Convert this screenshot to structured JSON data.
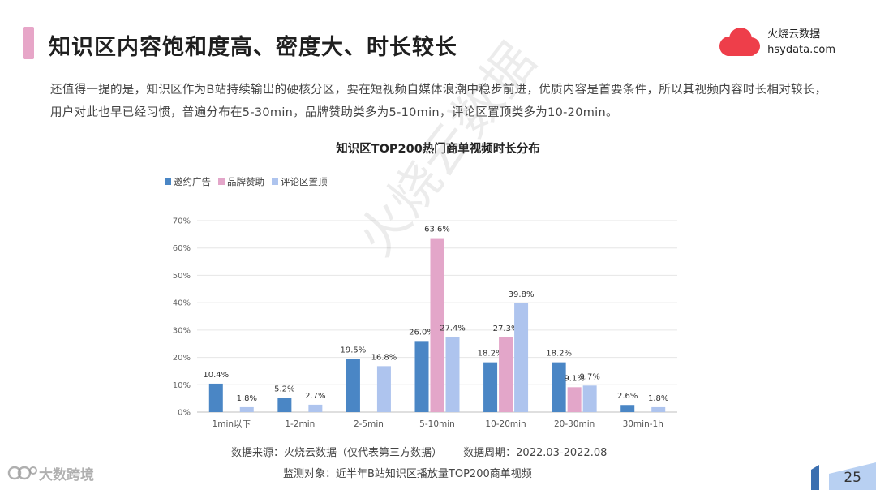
{
  "header": {
    "title": "知识区内容饱和度高、密度大、时长较长",
    "brand_name": "火烧云数据",
    "brand_url": "hsydata.com"
  },
  "intro": "还值得一提的是，知识区作为B站持续输出的硬核分区，要在短视频自媒体浪潮中稳步前进，优质内容是首要条件，所以其视频内容时长相对较长，用户对此也早已经习惯，普遍分布在5-30min，品牌赞助类多为5-10min，评论区置顶类多为10-20min。",
  "watermark": "火烧云数据",
  "colors": {
    "accent": "#e7a6c8",
    "brand_red": "#ee3e4a",
    "series": [
      "#4a86c5",
      "#e3a6c9",
      "#aec4ee"
    ]
  },
  "chart_data": {
    "type": "bar",
    "title": "知识区TOP200热门商单视频时长分布",
    "categories": [
      "1min以下",
      "1-2min",
      "2-5min",
      "5-10min",
      "10-20min",
      "20-30min",
      "30min-1h"
    ],
    "series": [
      {
        "name": "邀约广告",
        "values": [
          10.4,
          5.2,
          19.5,
          26.0,
          18.2,
          18.2,
          2.6
        ]
      },
      {
        "name": "品牌赞助",
        "values": [
          null,
          null,
          null,
          63.6,
          27.3,
          9.1,
          null
        ]
      },
      {
        "name": "评论区置顶",
        "values": [
          1.8,
          2.7,
          16.8,
          27.4,
          39.8,
          9.7,
          1.8
        ]
      }
    ],
    "y_ticks": [
      "0%",
      "10%",
      "20%",
      "30%",
      "40%",
      "50%",
      "60%",
      "70%"
    ],
    "ylim": [
      0,
      70
    ],
    "value_suffix": "%",
    "grid": true,
    "legend_position": "top-left"
  },
  "footer": {
    "source": "数据来源：火烧云数据（仅代表第三方数据）",
    "period": "数据周期：2022.03-2022.08",
    "object": "监测对象：近半年B站知识区播放量TOP200商单视频",
    "corner_logo": "大数跨境",
    "page_number": "25"
  }
}
